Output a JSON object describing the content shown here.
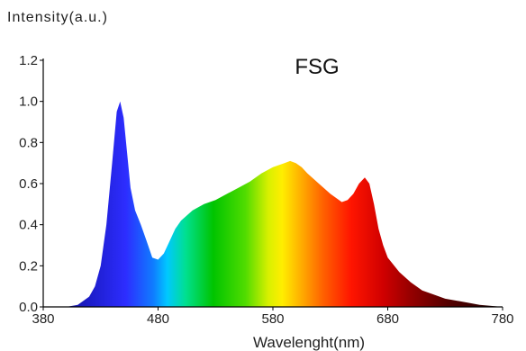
{
  "chart_data": {
    "type": "area",
    "title": "FSG",
    "xlabel": "Wavelenght(nm)",
    "ylabel": "Intensity(a.u.)",
    "xlim": [
      380,
      780
    ],
    "ylim": [
      0.0,
      1.2
    ],
    "x_ticks": [
      380,
      480,
      580,
      680,
      780
    ],
    "y_ticks": [
      "0.0",
      "0.2",
      "0.4",
      "0.6",
      "0.8",
      "1.0",
      "1.2"
    ],
    "grid": false,
    "fill": "rainbow spectrum gradient",
    "series": [
      {
        "x": [
          380,
          400,
          410,
          420,
          425,
          430,
          435,
          440,
          444,
          447,
          450,
          453,
          456,
          460,
          465,
          470,
          475,
          480,
          485,
          490,
          495,
          500,
          510,
          520,
          530,
          540,
          550,
          560,
          570,
          580,
          590,
          595,
          600,
          605,
          610,
          620,
          630,
          640,
          645,
          650,
          655,
          660,
          664,
          668,
          672,
          676,
          680,
          690,
          700,
          710,
          720,
          730,
          740,
          750,
          760,
          770,
          780
        ],
        "y": [
          0.0,
          0.0,
          0.01,
          0.05,
          0.1,
          0.2,
          0.4,
          0.7,
          0.95,
          1.0,
          0.92,
          0.75,
          0.58,
          0.47,
          0.4,
          0.32,
          0.24,
          0.23,
          0.26,
          0.32,
          0.38,
          0.42,
          0.47,
          0.5,
          0.52,
          0.55,
          0.58,
          0.61,
          0.65,
          0.68,
          0.7,
          0.71,
          0.7,
          0.68,
          0.65,
          0.6,
          0.55,
          0.51,
          0.52,
          0.55,
          0.6,
          0.63,
          0.6,
          0.5,
          0.38,
          0.3,
          0.24,
          0.17,
          0.12,
          0.08,
          0.06,
          0.04,
          0.03,
          0.02,
          0.01,
          0.005,
          0.0
        ]
      }
    ]
  }
}
